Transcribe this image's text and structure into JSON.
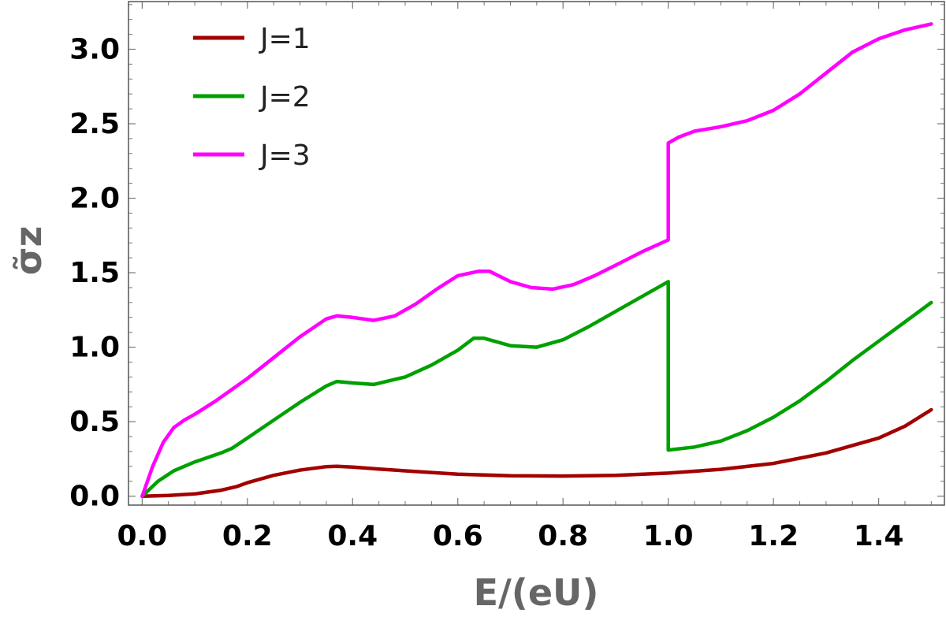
{
  "chart_data": {
    "type": "line",
    "xlabel": "E/(eU)",
    "ylabel": "σ̃z",
    "xlim": [
      -0.026,
      1.525
    ],
    "ylim": [
      -0.06,
      3.32
    ],
    "xticks": [
      0.0,
      0.2,
      0.4,
      0.6,
      0.8,
      1.0,
      1.2,
      1.4
    ],
    "xtick_labels": [
      "0.0",
      "0.2",
      "0.4",
      "0.6",
      "0.8",
      "1.0",
      "1.2",
      "1.4"
    ],
    "yticks": [
      0.0,
      0.5,
      1.0,
      1.5,
      2.0,
      2.5,
      3.0
    ],
    "ytick_labels": [
      "0.0",
      "0.5",
      "1.0",
      "1.5",
      "2.0",
      "2.5",
      "3.0"
    ],
    "grid": false,
    "legend_position": "top-left",
    "series": [
      {
        "name": "J=1",
        "color": "#a30000",
        "x": [
          0.0,
          0.05,
          0.1,
          0.15,
          0.18,
          0.2,
          0.25,
          0.3,
          0.35,
          0.37,
          0.4,
          0.45,
          0.5,
          0.6,
          0.7,
          0.8,
          0.9,
          1.0,
          1.1,
          1.2,
          1.3,
          1.4,
          1.45,
          1.5
        ],
        "values": [
          0.0,
          0.005,
          0.015,
          0.04,
          0.065,
          0.09,
          0.14,
          0.175,
          0.198,
          0.2,
          0.195,
          0.182,
          0.17,
          0.148,
          0.137,
          0.135,
          0.14,
          0.155,
          0.18,
          0.22,
          0.29,
          0.39,
          0.47,
          0.58
        ]
      },
      {
        "name": "J=2",
        "color": "#00a000",
        "x": [
          0.0,
          0.03,
          0.06,
          0.1,
          0.15,
          0.17,
          0.2,
          0.25,
          0.3,
          0.35,
          0.37,
          0.4,
          0.44,
          0.5,
          0.55,
          0.6,
          0.63,
          0.65,
          0.7,
          0.75,
          0.8,
          0.85,
          0.9,
          0.95,
          1.0,
          1.0,
          1.05,
          1.1,
          1.15,
          1.2,
          1.25,
          1.3,
          1.35,
          1.4,
          1.45,
          1.5
        ],
        "values": [
          0.0,
          0.1,
          0.17,
          0.23,
          0.29,
          0.32,
          0.39,
          0.51,
          0.63,
          0.74,
          0.77,
          0.76,
          0.75,
          0.8,
          0.88,
          0.98,
          1.06,
          1.06,
          1.01,
          1.0,
          1.05,
          1.14,
          1.24,
          1.34,
          1.44,
          0.31,
          0.33,
          0.37,
          0.44,
          0.53,
          0.64,
          0.77,
          0.91,
          1.04,
          1.17,
          1.3
        ]
      },
      {
        "name": "J=3",
        "color": "#ff00ff",
        "x": [
          0.0,
          0.02,
          0.04,
          0.06,
          0.08,
          0.1,
          0.14,
          0.2,
          0.25,
          0.3,
          0.35,
          0.37,
          0.4,
          0.44,
          0.48,
          0.52,
          0.56,
          0.6,
          0.64,
          0.66,
          0.7,
          0.74,
          0.78,
          0.82,
          0.86,
          0.9,
          0.95,
          1.0,
          1.0,
          1.02,
          1.05,
          1.1,
          1.15,
          1.2,
          1.25,
          1.3,
          1.35,
          1.4,
          1.45,
          1.5
        ],
        "values": [
          0.0,
          0.2,
          0.36,
          0.46,
          0.51,
          0.55,
          0.64,
          0.79,
          0.93,
          1.07,
          1.19,
          1.21,
          1.2,
          1.18,
          1.21,
          1.29,
          1.39,
          1.48,
          1.51,
          1.51,
          1.44,
          1.4,
          1.39,
          1.42,
          1.48,
          1.55,
          1.64,
          1.72,
          2.37,
          2.41,
          2.45,
          2.48,
          2.52,
          2.59,
          2.7,
          2.84,
          2.98,
          3.07,
          3.13,
          3.17
        ]
      }
    ]
  }
}
